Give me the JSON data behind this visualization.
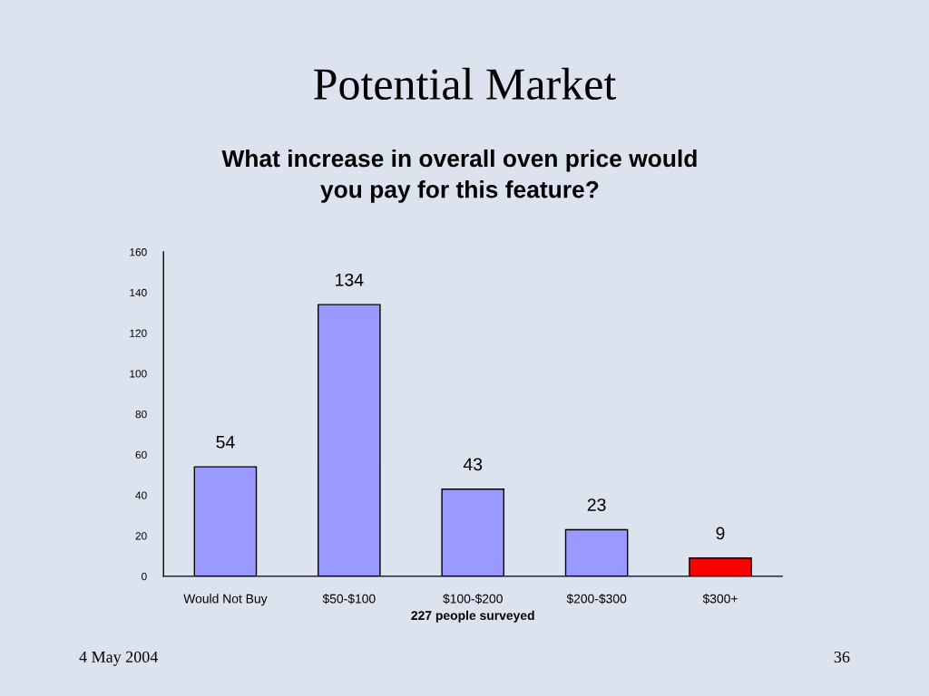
{
  "chart_data": {
    "type": "bar",
    "title": "Potential Market",
    "subtitle": "What increase in overall oven price would\nyou pay for this feature?",
    "xlabel": "227 people surveyed",
    "categories": [
      "Would Not Buy",
      "$50-$100",
      "$100-$200",
      "$200-$300",
      "$300+"
    ],
    "values": [
      54,
      134,
      43,
      23,
      9
    ],
    "colors": [
      "#9999ff",
      "#9999ff",
      "#9999ff",
      "#9999ff",
      "#ff0000"
    ],
    "ylim": [
      0,
      160
    ],
    "yticks": [
      0,
      20,
      40,
      60,
      80,
      100,
      120,
      140,
      160
    ],
    "data_labels": true,
    "grid": false,
    "annotations": [
      "4 May 2004",
      "36"
    ]
  }
}
